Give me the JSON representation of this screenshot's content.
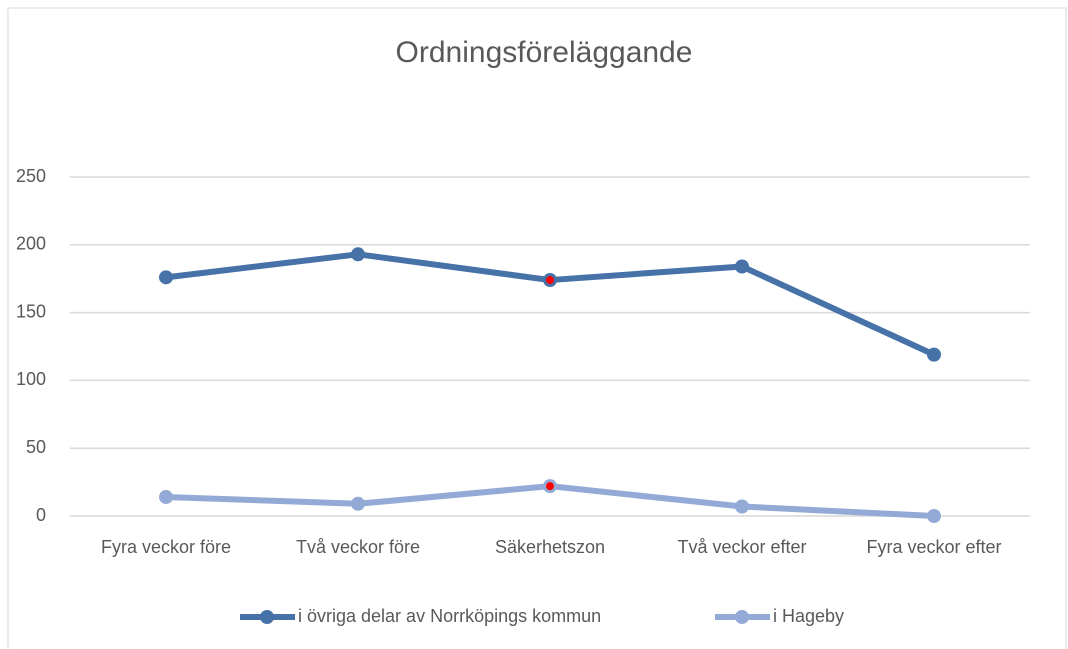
{
  "chart_data": {
    "type": "line",
    "title": "Ordningsföreläggande",
    "categories": [
      "Fyra veckor före",
      "Två veckor före",
      "Säkerhetszon",
      "Två veckor efter",
      "Fyra veckor efter"
    ],
    "series": [
      {
        "name": "i övriga delar av Norrköpings kommun",
        "color": "#4672a8",
        "values": [
          176,
          193,
          174,
          184,
          119
        ]
      },
      {
        "name": "i Hageby",
        "color": "#94aad6",
        "values": [
          14,
          9,
          22,
          7,
          0
        ]
      }
    ],
    "highlight_index": 2,
    "highlight_color": "#ff0000",
    "ylim": [
      0,
      250
    ],
    "yticks": [
      0,
      50,
      100,
      150,
      200,
      250
    ],
    "grid": true,
    "legend": "bottom"
  }
}
